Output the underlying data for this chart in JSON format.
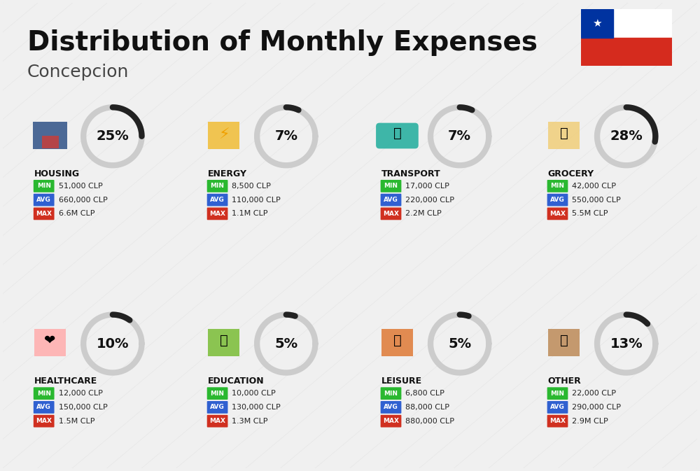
{
  "title": "Distribution of Monthly Expenses",
  "subtitle": "Concepcion",
  "bg_color": "#f0f0f0",
  "title_fontsize": 28,
  "subtitle_fontsize": 18,
  "categories": [
    {
      "name": "HOUSING",
      "percent": 25,
      "min": "51,000 CLP",
      "avg": "660,000 CLP",
      "max": "6.6M CLP",
      "row": 0,
      "col": 0,
      "icon_color": "#3a5a8c",
      "donut_color": "#333333"
    },
    {
      "name": "ENERGY",
      "percent": 7,
      "min": "8,500 CLP",
      "avg": "110,000 CLP",
      "max": "1.1M CLP",
      "row": 0,
      "col": 1,
      "icon_color": "#e8a020",
      "donut_color": "#333333"
    },
    {
      "name": "TRANSPORT",
      "percent": 7,
      "min": "17,000 CLP",
      "avg": "220,000 CLP",
      "max": "2.2M CLP",
      "row": 0,
      "col": 2,
      "icon_color": "#2ab0a0",
      "donut_color": "#333333"
    },
    {
      "name": "GROCERY",
      "percent": 28,
      "min": "42,000 CLP",
      "avg": "550,000 CLP",
      "max": "5.5M CLP",
      "row": 0,
      "col": 3,
      "icon_color": "#e8a020",
      "donut_color": "#333333"
    },
    {
      "name": "HEALTHCARE",
      "percent": 10,
      "min": "12,000 CLP",
      "avg": "150,000 CLP",
      "max": "1.5M CLP",
      "row": 1,
      "col": 0,
      "icon_color": "#e84040",
      "donut_color": "#333333"
    },
    {
      "name": "EDUCATION",
      "percent": 5,
      "min": "10,000 CLP",
      "avg": "130,000 CLP",
      "max": "1.3M CLP",
      "row": 1,
      "col": 1,
      "icon_color": "#4a8a30",
      "donut_color": "#333333"
    },
    {
      "name": "LEISURE",
      "percent": 5,
      "min": "6,800 CLP",
      "avg": "88,000 CLP",
      "max": "880,000 CLP",
      "row": 1,
      "col": 2,
      "icon_color": "#e84040",
      "donut_color": "#333333"
    },
    {
      "name": "OTHER",
      "percent": 13,
      "min": "22,000 CLP",
      "avg": "290,000 CLP",
      "max": "2.9M CLP",
      "row": 1,
      "col": 3,
      "icon_color": "#b87820",
      "donut_color": "#333333"
    }
  ],
  "min_color": "#2ab830",
  "avg_color": "#3060d0",
  "max_color": "#d03020",
  "label_fontsize": 7.5,
  "value_fontsize": 8,
  "cat_fontsize": 9,
  "pct_fontsize": 14
}
